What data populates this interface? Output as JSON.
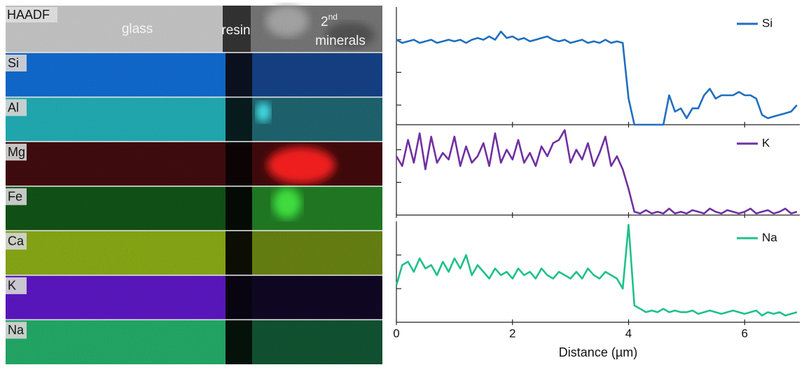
{
  "maps": {
    "header": {
      "label": "HAADF",
      "glass": "glass",
      "resin": "resin",
      "minerals_number": "2",
      "minerals_suffix": "nd",
      "minerals": "minerals"
    },
    "elements": [
      "Si",
      "Al",
      "Mg",
      "Fe",
      "Ca",
      "K",
      "Na"
    ]
  },
  "chart_data": [
    {
      "type": "line",
      "legend": "upper right",
      "xlim": [
        0,
        6.95
      ],
      "xticks": [
        0,
        2,
        4,
        6
      ],
      "xtick_labels": false,
      "ylim": [
        0,
        3.6
      ],
      "yticks": [
        0.6,
        1.6,
        2.6
      ],
      "ytick_labels": false,
      "x": [
        0,
        0.1,
        0.2,
        0.3,
        0.4,
        0.5,
        0.6,
        0.7,
        0.8,
        0.9,
        1,
        1.1,
        1.2,
        1.3,
        1.4,
        1.5,
        1.6,
        1.7,
        1.8,
        1.9,
        2,
        2.1,
        2.2,
        2.3,
        2.4,
        2.5,
        2.6,
        2.7,
        2.8,
        2.9,
        3,
        3.1,
        3.2,
        3.3,
        3.4,
        3.5,
        3.6,
        3.7,
        3.8,
        3.9,
        4,
        4.1,
        4.2,
        4.3,
        4.4,
        4.5,
        4.6,
        4.7,
        4.8,
        4.9,
        5,
        5.1,
        5.2,
        5.3,
        5.4,
        5.5,
        5.6,
        5.7,
        5.8,
        5.9,
        6,
        6.1,
        6.2,
        6.3,
        6.4,
        6.5,
        6.6,
        6.7,
        6.8,
        6.9
      ],
      "series": [
        {
          "name": "Si",
          "color": "#1f6fc0",
          "values": [
            2.6,
            2.5,
            2.55,
            2.6,
            2.5,
            2.55,
            2.6,
            2.5,
            2.55,
            2.6,
            2.55,
            2.6,
            2.5,
            2.6,
            2.65,
            2.6,
            2.7,
            2.6,
            2.85,
            2.65,
            2.7,
            2.6,
            2.65,
            2.55,
            2.6,
            2.65,
            2.7,
            2.6,
            2.55,
            2.6,
            2.5,
            2.55,
            2.6,
            2.5,
            2.55,
            2.5,
            2.6,
            2.5,
            2.55,
            2.5,
            0.8,
            0,
            0,
            0,
            0,
            0,
            0,
            0.9,
            0.4,
            0.5,
            0.2,
            0.5,
            0.5,
            0.9,
            1.1,
            0.8,
            0.9,
            0.9,
            0.9,
            1.0,
            0.9,
            0.9,
            0.8,
            0.3,
            0.2,
            0.25,
            0.3,
            0.35,
            0.4,
            0.6
          ]
        }
      ]
    },
    {
      "type": "line",
      "legend": "upper right",
      "xlim": [
        0,
        6.95
      ],
      "xticks": [
        0,
        2,
        4,
        6
      ],
      "xtick_labels": false,
      "ylim": [
        0,
        2.7
      ],
      "yticks": [
        1,
        2
      ],
      "ytick_labels": false,
      "x": [
        0,
        0.1,
        0.2,
        0.3,
        0.4,
        0.5,
        0.6,
        0.7,
        0.8,
        0.9,
        1,
        1.1,
        1.2,
        1.3,
        1.4,
        1.5,
        1.6,
        1.7,
        1.8,
        1.9,
        2,
        2.1,
        2.2,
        2.3,
        2.4,
        2.5,
        2.6,
        2.7,
        2.8,
        2.9,
        3,
        3.1,
        3.2,
        3.3,
        3.4,
        3.5,
        3.6,
        3.7,
        3.8,
        3.9,
        4,
        4.1,
        4.2,
        4.3,
        4.4,
        4.5,
        4.6,
        4.7,
        4.8,
        4.9,
        5,
        5.1,
        5.2,
        5.3,
        5.4,
        5.5,
        5.6,
        5.7,
        5.8,
        5.9,
        6,
        6.1,
        6.2,
        6.3,
        6.4,
        6.5,
        6.6,
        6.7,
        6.8,
        6.9
      ],
      "series": [
        {
          "name": "K",
          "color": "#7030a0",
          "values": [
            1.8,
            1.5,
            2.3,
            1.6,
            2.5,
            1.4,
            2.4,
            1.6,
            1.9,
            1.7,
            2.4,
            1.5,
            2.1,
            1.6,
            1.8,
            2.2,
            1.5,
            2.5,
            1.6,
            2.0,
            1.7,
            2.3,
            1.6,
            1.9,
            1.5,
            2.1,
            1.8,
            2.2,
            2.3,
            2.6,
            1.6,
            2.0,
            1.7,
            2.2,
            1.5,
            1.9,
            2.4,
            1.5,
            1.8,
            1.4,
            0.8,
            0.1,
            0.05,
            0.15,
            0.05,
            0.1,
            0.05,
            0.2,
            0.05,
            0.1,
            0.05,
            0.15,
            0.1,
            0.05,
            0.2,
            0.1,
            0.05,
            0.15,
            0.1,
            0.05,
            0.1,
            0.2,
            0.05,
            0.1,
            0.15,
            0.05,
            0.1,
            0.2,
            0.05,
            0.1
          ]
        }
      ]
    },
    {
      "type": "line",
      "legend": "upper right",
      "xlim": [
        0,
        6.95
      ],
      "xticks": [
        0,
        2,
        4,
        6
      ],
      "xtick_labels": true,
      "xlabel": "Distance (µm)",
      "ylim": [
        0,
        3
      ],
      "yticks": [
        1,
        2
      ],
      "ytick_labels": false,
      "x": [
        0,
        0.1,
        0.2,
        0.3,
        0.4,
        0.5,
        0.6,
        0.7,
        0.8,
        0.9,
        1,
        1.1,
        1.2,
        1.3,
        1.4,
        1.5,
        1.6,
        1.7,
        1.8,
        1.9,
        2,
        2.1,
        2.2,
        2.3,
        2.4,
        2.5,
        2.6,
        2.7,
        2.8,
        2.9,
        3,
        3.1,
        3.2,
        3.3,
        3.4,
        3.5,
        3.6,
        3.7,
        3.8,
        3.9,
        4,
        4.1,
        4.2,
        4.3,
        4.4,
        4.5,
        4.6,
        4.7,
        4.8,
        4.9,
        5,
        5.1,
        5.2,
        5.3,
        5.4,
        5.5,
        5.6,
        5.7,
        5.8,
        5.9,
        6,
        6.1,
        6.2,
        6.3,
        6.4,
        6.5,
        6.6,
        6.7,
        6.8,
        6.9
      ],
      "series": [
        {
          "name": "Na",
          "color": "#20c08a",
          "values": [
            1.1,
            1.7,
            1.8,
            1.5,
            1.9,
            1.6,
            1.7,
            1.4,
            1.8,
            1.5,
            1.9,
            1.6,
            2.0,
            1.4,
            1.7,
            1.5,
            1.3,
            1.6,
            1.4,
            1.5,
            1.3,
            1.6,
            1.4,
            1.5,
            1.3,
            1.6,
            1.4,
            1.3,
            1.5,
            1.4,
            1.3,
            1.5,
            1.3,
            1.6,
            1.4,
            1.3,
            1.5,
            1.4,
            1.3,
            1.0,
            2.9,
            0.5,
            0.4,
            0.3,
            0.35,
            0.3,
            0.4,
            0.3,
            0.35,
            0.3,
            0.3,
            0.35,
            0.25,
            0.3,
            0.35,
            0.3,
            0.25,
            0.3,
            0.35,
            0.3,
            0.25,
            0.3,
            0.35,
            0.2,
            0.3,
            0.25,
            0.3,
            0.2,
            0.25,
            0.3
          ]
        }
      ]
    }
  ]
}
